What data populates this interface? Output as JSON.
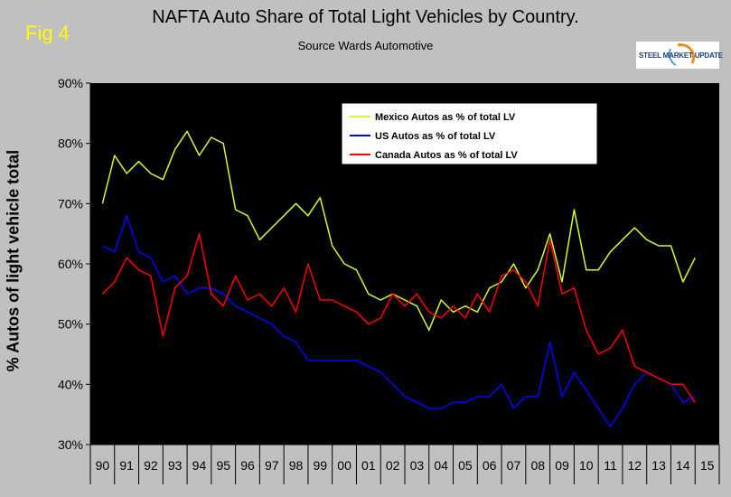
{
  "fig_label": "Fig 4",
  "logo_text": "STEEL MARKET UPDATE",
  "chart_data": {
    "type": "line",
    "title": "NAFTA   Auto Share of Total Light Vehicles by Country.",
    "subtitle": "Source Wards Automotive",
    "ylabel": "% Autos of light vehicle total",
    "xlabel": "",
    "ylim": [
      30,
      90
    ],
    "yticks": [
      "30%",
      "40%",
      "50%",
      "60%",
      "70%",
      "80%",
      "90%"
    ],
    "categories": [
      "90",
      "91",
      "92",
      "93",
      "94",
      "95",
      "96",
      "97",
      "98",
      "99",
      "00",
      "01",
      "02",
      "03",
      "04",
      "05",
      "06",
      "07",
      "08",
      "09",
      "10",
      "11",
      "12",
      "13",
      "14",
      "15"
    ],
    "x": [
      1990.0,
      1990.5,
      1991.0,
      1991.5,
      1992.0,
      1992.5,
      1993.0,
      1993.5,
      1994.0,
      1994.5,
      1995.0,
      1995.5,
      1996.0,
      1996.5,
      1997.0,
      1997.5,
      1998.0,
      1998.5,
      1999.0,
      1999.5,
      2000.0,
      2000.5,
      2001.0,
      2001.5,
      2002.0,
      2002.5,
      2003.0,
      2003.5,
      2004.0,
      2004.5,
      2005.0,
      2005.5,
      2006.0,
      2006.5,
      2007.0,
      2007.5,
      2008.0,
      2008.5,
      2009.0,
      2009.5,
      2010.0,
      2010.5,
      2011.0,
      2011.5,
      2012.0,
      2012.5,
      2013.0,
      2013.5,
      2014.0,
      2014.5
    ],
    "series": [
      {
        "name": "Mexico Autos as % of total LV",
        "color": "#ccff33",
        "values": [
          70,
          78,
          75,
          77,
          75,
          74,
          79,
          82,
          78,
          81,
          80,
          69,
          68,
          64,
          66,
          68,
          70,
          68,
          71,
          63,
          60,
          59,
          55,
          54,
          55,
          54,
          53,
          49,
          54,
          52,
          53,
          52,
          56,
          57,
          60,
          56,
          59,
          65,
          57,
          69,
          59,
          59,
          62,
          64,
          66,
          64,
          63,
          63,
          57,
          61
        ]
      },
      {
        "name": "US Autos as % of total LV",
        "color": "#0000ff",
        "values": [
          63,
          62,
          68,
          62,
          61,
          57,
          58,
          55,
          56,
          56,
          55,
          53,
          52,
          51,
          50,
          48,
          47,
          44,
          44,
          44,
          44,
          44,
          43,
          42,
          40,
          38,
          37,
          36,
          36,
          37,
          37,
          38,
          38,
          40,
          36,
          38,
          38,
          47,
          38,
          42,
          39,
          36,
          33,
          36,
          40,
          42,
          41,
          40,
          37,
          38
        ]
      },
      {
        "name": "Canada Autos as % of total LV",
        "color": "#ff0000",
        "values": [
          55,
          57,
          61,
          59,
          58,
          48,
          56,
          58,
          65,
          55,
          53,
          58,
          54,
          55,
          53,
          56,
          52,
          60,
          54,
          54,
          53,
          52,
          50,
          51,
          55,
          53,
          55,
          52,
          51,
          53,
          51,
          55,
          52,
          58,
          59,
          57,
          53,
          64,
          55,
          56,
          49,
          45,
          46,
          49,
          43,
          42,
          41,
          40,
          40,
          37
        ]
      }
    ]
  }
}
